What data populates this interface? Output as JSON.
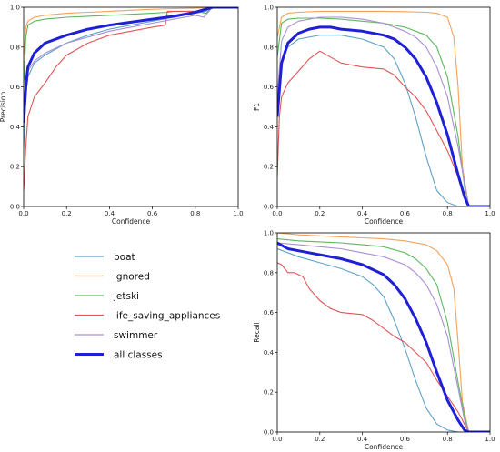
{
  "legend": [
    {
      "label": "boat",
      "color": "#5fa2c8",
      "width": 1.2
    },
    {
      "label": "ignored",
      "color": "#f4a259",
      "width": 1.2
    },
    {
      "label": "jetski",
      "color": "#5cb85c",
      "width": 1.2
    },
    {
      "label": "life_saving_appliances",
      "color": "#e05656",
      "width": 1.2
    },
    {
      "label": "swimmer",
      "color": "#a98fd6",
      "width": 1.2
    },
    {
      "label": "all classes",
      "color": "#1f1fd6",
      "width": 3
    }
  ],
  "chart_data": [
    {
      "type": "line",
      "title": "",
      "xlabel": "Confidence",
      "ylabel": "Precision",
      "xlim": [
        0,
        1
      ],
      "ylim": [
        0,
        1
      ],
      "xticks": [
        "0.0",
        "0.2",
        "0.4",
        "0.6",
        "0.8",
        "1.0"
      ],
      "yticks": [
        "0.0",
        "0.2",
        "0.4",
        "0.6",
        "0.8",
        "1.0"
      ],
      "grid": false,
      "series": [
        {
          "name": "boat",
          "color": "#5fa2c8",
          "x": [
            0,
            0.01,
            0.02,
            0.05,
            0.1,
            0.2,
            0.3,
            0.4,
            0.5,
            0.6,
            0.7,
            0.8,
            0.85,
            0.88,
            1.0
          ],
          "y": [
            0.3,
            0.55,
            0.65,
            0.72,
            0.76,
            0.82,
            0.86,
            0.89,
            0.91,
            0.93,
            0.95,
            0.97,
            0.98,
            1.0,
            1.0
          ]
        },
        {
          "name": "ignored",
          "color": "#f4a259",
          "x": [
            0,
            0.01,
            0.02,
            0.05,
            0.1,
            0.2,
            0.3,
            0.4,
            0.5,
            0.6,
            0.7,
            0.8,
            0.85,
            0.9,
            1.0
          ],
          "y": [
            0.75,
            0.9,
            0.93,
            0.95,
            0.96,
            0.97,
            0.975,
            0.98,
            0.985,
            0.99,
            0.993,
            0.995,
            0.997,
            1.0,
            1.0
          ]
        },
        {
          "name": "jetski",
          "color": "#5cb85c",
          "x": [
            0,
            0.01,
            0.02,
            0.05,
            0.1,
            0.2,
            0.3,
            0.4,
            0.5,
            0.6,
            0.67,
            0.7,
            0.8,
            0.85,
            0.88,
            1.0
          ],
          "y": [
            0.6,
            0.85,
            0.91,
            0.93,
            0.94,
            0.95,
            0.955,
            0.96,
            0.965,
            0.97,
            0.975,
            0.98,
            0.98,
            0.97,
            1.0,
            1.0
          ]
        },
        {
          "name": "life_saving_appliances",
          "color": "#e05656",
          "x": [
            0,
            0.01,
            0.02,
            0.05,
            0.1,
            0.15,
            0.2,
            0.3,
            0.4,
            0.5,
            0.6,
            0.66,
            0.67,
            0.7,
            0.8,
            0.85,
            0.88,
            1.0
          ],
          "y": [
            0.08,
            0.3,
            0.45,
            0.55,
            0.62,
            0.7,
            0.76,
            0.82,
            0.86,
            0.88,
            0.9,
            0.91,
            0.98,
            0.98,
            0.98,
            0.99,
            1.0,
            1.0
          ]
        },
        {
          "name": "swimmer",
          "color": "#a98fd6",
          "x": [
            0,
            0.01,
            0.02,
            0.05,
            0.1,
            0.2,
            0.3,
            0.4,
            0.5,
            0.6,
            0.7,
            0.8,
            0.84,
            0.88,
            1.0
          ],
          "y": [
            0.4,
            0.6,
            0.68,
            0.73,
            0.77,
            0.82,
            0.85,
            0.88,
            0.9,
            0.92,
            0.94,
            0.96,
            0.95,
            1.0,
            1.0
          ]
        },
        {
          "name": "all classes",
          "color": "#1f1fd6",
          "x": [
            0,
            0.01,
            0.02,
            0.05,
            0.1,
            0.2,
            0.3,
            0.4,
            0.5,
            0.6,
            0.7,
            0.8,
            0.88,
            1.0
          ],
          "y": [
            0.42,
            0.6,
            0.7,
            0.77,
            0.82,
            0.86,
            0.89,
            0.91,
            0.925,
            0.94,
            0.955,
            0.975,
            1.0,
            1.0
          ],
          "width": 3
        }
      ]
    },
    {
      "type": "line",
      "title": "",
      "xlabel": "Confidence",
      "ylabel": "F1",
      "xlim": [
        0,
        1
      ],
      "ylim": [
        0,
        1
      ],
      "xticks": [
        "0.0",
        "0.2",
        "0.4",
        "0.6",
        "0.8",
        "1.0"
      ],
      "yticks": [
        "0.0",
        "0.2",
        "0.4",
        "0.6",
        "0.8",
        "1.0"
      ],
      "grid": false,
      "series": [
        {
          "name": "boat",
          "color": "#5fa2c8",
          "x": [
            0,
            0.02,
            0.05,
            0.1,
            0.2,
            0.3,
            0.4,
            0.5,
            0.55,
            0.6,
            0.65,
            0.7,
            0.75,
            0.8,
            0.85,
            1.0
          ],
          "y": [
            0.45,
            0.72,
            0.8,
            0.84,
            0.86,
            0.86,
            0.84,
            0.8,
            0.74,
            0.62,
            0.45,
            0.25,
            0.08,
            0.02,
            0.0,
            0.0
          ]
        },
        {
          "name": "ignored",
          "color": "#f4a259",
          "x": [
            0,
            0.02,
            0.05,
            0.1,
            0.2,
            0.3,
            0.4,
            0.5,
            0.6,
            0.7,
            0.75,
            0.8,
            0.83,
            0.85,
            0.87,
            0.9,
            1.0
          ],
          "y": [
            0.85,
            0.95,
            0.97,
            0.975,
            0.98,
            0.98,
            0.98,
            0.98,
            0.978,
            0.975,
            0.97,
            0.95,
            0.85,
            0.6,
            0.2,
            0.0,
            0.0
          ]
        },
        {
          "name": "jetski",
          "color": "#5cb85c",
          "x": [
            0,
            0.02,
            0.05,
            0.1,
            0.2,
            0.3,
            0.4,
            0.5,
            0.6,
            0.7,
            0.75,
            0.8,
            0.85,
            0.88,
            0.9,
            1.0
          ],
          "y": [
            0.75,
            0.92,
            0.94,
            0.945,
            0.945,
            0.94,
            0.93,
            0.92,
            0.9,
            0.86,
            0.8,
            0.65,
            0.35,
            0.1,
            0.0,
            0.0
          ]
        },
        {
          "name": "life_saving_appliances",
          "color": "#e05656",
          "x": [
            0,
            0.01,
            0.02,
            0.05,
            0.1,
            0.15,
            0.2,
            0.25,
            0.3,
            0.4,
            0.5,
            0.55,
            0.6,
            0.65,
            0.7,
            0.75,
            0.8,
            0.85,
            0.88,
            0.9,
            1.0
          ],
          "y": [
            0.15,
            0.45,
            0.55,
            0.62,
            0.68,
            0.74,
            0.78,
            0.75,
            0.72,
            0.7,
            0.69,
            0.66,
            0.6,
            0.55,
            0.48,
            0.38,
            0.28,
            0.15,
            0.05,
            0.0,
            0.0
          ]
        },
        {
          "name": "swimmer",
          "color": "#a98fd6",
          "x": [
            0,
            0.02,
            0.05,
            0.1,
            0.2,
            0.3,
            0.4,
            0.5,
            0.6,
            0.65,
            0.7,
            0.75,
            0.8,
            0.85,
            0.9,
            1.0
          ],
          "y": [
            0.55,
            0.83,
            0.9,
            0.93,
            0.95,
            0.95,
            0.94,
            0.92,
            0.88,
            0.85,
            0.8,
            0.7,
            0.55,
            0.3,
            0.0,
            0.0
          ]
        },
        {
          "name": "all classes",
          "color": "#1f1fd6",
          "x": [
            0,
            0.02,
            0.05,
            0.1,
            0.15,
            0.2,
            0.25,
            0.3,
            0.4,
            0.5,
            0.55,
            0.6,
            0.65,
            0.7,
            0.75,
            0.8,
            0.85,
            0.88,
            0.9,
            1.0
          ],
          "y": [
            0.45,
            0.72,
            0.82,
            0.87,
            0.89,
            0.9,
            0.9,
            0.89,
            0.88,
            0.86,
            0.84,
            0.8,
            0.74,
            0.65,
            0.52,
            0.36,
            0.16,
            0.05,
            0.0,
            0.0
          ],
          "width": 3
        }
      ]
    },
    {
      "type": "line",
      "title": "",
      "xlabel": "Confidence",
      "ylabel": "Recall",
      "xlim": [
        0,
        1
      ],
      "ylim": [
        0,
        1
      ],
      "xticks": [
        "0.0",
        "0.2",
        "0.4",
        "0.6",
        "0.8",
        "1.0"
      ],
      "yticks": [
        "0.0",
        "0.2",
        "0.4",
        "0.6",
        "0.8",
        "1.0"
      ],
      "grid": false,
      "series": [
        {
          "name": "boat",
          "color": "#5fa2c8",
          "x": [
            0,
            0.1,
            0.2,
            0.3,
            0.4,
            0.45,
            0.5,
            0.55,
            0.6,
            0.65,
            0.7,
            0.75,
            0.8,
            0.85,
            1.0
          ],
          "y": [
            0.92,
            0.88,
            0.85,
            0.82,
            0.78,
            0.74,
            0.68,
            0.56,
            0.42,
            0.26,
            0.12,
            0.04,
            0.01,
            0.0,
            0.0
          ]
        },
        {
          "name": "ignored",
          "color": "#f4a259",
          "x": [
            0,
            0.1,
            0.2,
            0.3,
            0.4,
            0.5,
            0.6,
            0.7,
            0.75,
            0.8,
            0.83,
            0.85,
            0.87,
            0.9,
            1.0
          ],
          "y": [
            1.0,
            0.99,
            0.985,
            0.98,
            0.975,
            0.97,
            0.96,
            0.94,
            0.91,
            0.84,
            0.72,
            0.45,
            0.15,
            0.0,
            0.0
          ]
        },
        {
          "name": "jetski",
          "color": "#5cb85c",
          "x": [
            0,
            0.1,
            0.2,
            0.3,
            0.4,
            0.5,
            0.6,
            0.65,
            0.7,
            0.75,
            0.8,
            0.85,
            0.88,
            0.9,
            1.0
          ],
          "y": [
            0.97,
            0.96,
            0.955,
            0.95,
            0.94,
            0.93,
            0.9,
            0.87,
            0.82,
            0.74,
            0.55,
            0.25,
            0.08,
            0.0,
            0.0
          ]
        },
        {
          "name": "life_saving_appliances",
          "color": "#e05656",
          "x": [
            0,
            0.02,
            0.05,
            0.08,
            0.12,
            0.15,
            0.2,
            0.25,
            0.3,
            0.4,
            0.45,
            0.5,
            0.55,
            0.6,
            0.65,
            0.7,
            0.75,
            0.8,
            0.85,
            0.88,
            0.9,
            1.0
          ],
          "y": [
            0.85,
            0.84,
            0.8,
            0.8,
            0.78,
            0.72,
            0.66,
            0.62,
            0.6,
            0.59,
            0.56,
            0.52,
            0.48,
            0.45,
            0.4,
            0.35,
            0.26,
            0.18,
            0.1,
            0.04,
            0.0,
            0.0
          ]
        },
        {
          "name": "swimmer",
          "color": "#a98fd6",
          "x": [
            0,
            0.1,
            0.2,
            0.3,
            0.4,
            0.5,
            0.6,
            0.65,
            0.7,
            0.75,
            0.8,
            0.85,
            0.88,
            0.9,
            1.0
          ],
          "y": [
            0.95,
            0.94,
            0.93,
            0.92,
            0.9,
            0.88,
            0.84,
            0.8,
            0.74,
            0.64,
            0.48,
            0.22,
            0.06,
            0.0,
            0.0
          ]
        },
        {
          "name": "all classes",
          "color": "#1f1fd6",
          "x": [
            0,
            0.05,
            0.1,
            0.2,
            0.3,
            0.4,
            0.5,
            0.55,
            0.6,
            0.65,
            0.7,
            0.75,
            0.8,
            0.85,
            0.88,
            0.9,
            1.0
          ],
          "y": [
            0.95,
            0.92,
            0.91,
            0.89,
            0.87,
            0.84,
            0.79,
            0.74,
            0.67,
            0.57,
            0.45,
            0.3,
            0.16,
            0.06,
            0.01,
            0.0,
            0.0
          ],
          "width": 3
        }
      ]
    }
  ]
}
